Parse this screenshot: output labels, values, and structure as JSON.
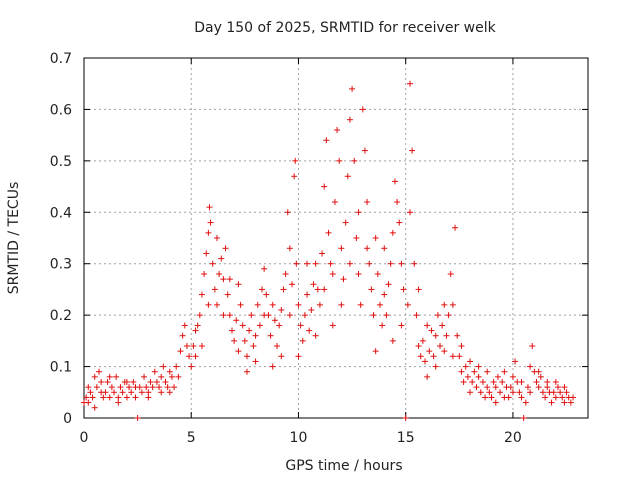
{
  "chart_data": {
    "type": "scatter",
    "title": "Day 150 of 2025, SRMTID for receiver welk",
    "xlabel": "GPS time / hours",
    "ylabel": "SRMTID / TECUs",
    "xlim": [
      0,
      23.5
    ],
    "ylim": [
      0,
      0.7
    ],
    "x_ticks": [
      0,
      5,
      10,
      15,
      20
    ],
    "x_tick_labels": [
      "0",
      "5",
      "10",
      "15",
      "20"
    ],
    "y_ticks": [
      0,
      0.1,
      0.2,
      0.3,
      0.4,
      0.5,
      0.6,
      0.7
    ],
    "y_tick_labels": [
      "0",
      "0.1",
      "0.2",
      "0.3",
      "0.4",
      "0.5",
      "0.6",
      "0.7"
    ],
    "grid": true,
    "marker": "plus",
    "marker_color": "#e01010",
    "series": [
      {
        "name": "SRMTID",
        "points": [
          [
            0.0,
            0.03
          ],
          [
            0.1,
            0.04
          ],
          [
            0.2,
            0.03
          ],
          [
            0.3,
            0.05
          ],
          [
            0.4,
            0.04
          ],
          [
            0.5,
            0.08
          ],
          [
            0.6,
            0.06
          ],
          [
            0.7,
            0.09
          ],
          [
            0.8,
            0.05
          ],
          [
            0.9,
            0.04
          ],
          [
            1.0,
            0.05
          ],
          [
            1.1,
            0.07
          ],
          [
            1.2,
            0.04
          ],
          [
            1.3,
            0.06
          ],
          [
            1.4,
            0.05
          ],
          [
            1.5,
            0.08
          ],
          [
            1.6,
            0.04
          ],
          [
            1.7,
            0.06
          ],
          [
            1.8,
            0.05
          ],
          [
            1.9,
            0.07
          ],
          [
            2.0,
            0.04
          ],
          [
            2.1,
            0.06
          ],
          [
            2.2,
            0.05
          ],
          [
            2.3,
            0.07
          ],
          [
            2.4,
            0.04
          ],
          [
            2.5,
            0.0
          ],
          [
            2.6,
            0.06
          ],
          [
            2.7,
            0.05
          ],
          [
            2.8,
            0.08
          ],
          [
            2.9,
            0.06
          ],
          [
            3.0,
            0.05
          ],
          [
            3.1,
            0.07
          ],
          [
            3.2,
            0.06
          ],
          [
            3.3,
            0.09
          ],
          [
            3.4,
            0.07
          ],
          [
            3.5,
            0.06
          ],
          [
            3.6,
            0.08
          ],
          [
            3.7,
            0.1
          ],
          [
            3.8,
            0.07
          ],
          [
            3.9,
            0.06
          ],
          [
            4.0,
            0.05
          ],
          [
            4.1,
            0.08
          ],
          [
            4.2,
            0.06
          ],
          [
            4.3,
            0.1
          ],
          [
            4.4,
            0.08
          ],
          [
            4.5,
            0.13
          ],
          [
            4.6,
            0.16
          ],
          [
            4.7,
            0.18
          ],
          [
            4.8,
            0.14
          ],
          [
            4.9,
            0.12
          ],
          [
            5.0,
            0.1
          ],
          [
            5.1,
            0.14
          ],
          [
            5.2,
            0.12
          ],
          [
            5.3,
            0.18
          ],
          [
            5.4,
            0.2
          ],
          [
            5.5,
            0.24
          ],
          [
            5.6,
            0.28
          ],
          [
            5.7,
            0.32
          ],
          [
            5.8,
            0.36
          ],
          [
            5.85,
            0.41
          ],
          [
            5.9,
            0.38
          ],
          [
            6.0,
            0.3
          ],
          [
            6.1,
            0.25
          ],
          [
            6.2,
            0.22
          ],
          [
            6.3,
            0.28
          ],
          [
            6.4,
            0.31
          ],
          [
            6.5,
            0.27
          ],
          [
            6.6,
            0.33
          ],
          [
            6.7,
            0.24
          ],
          [
            6.8,
            0.2
          ],
          [
            6.9,
            0.17
          ],
          [
            7.0,
            0.15
          ],
          [
            7.1,
            0.19
          ],
          [
            7.2,
            0.13
          ],
          [
            7.3,
            0.22
          ],
          [
            7.4,
            0.18
          ],
          [
            7.5,
            0.15
          ],
          [
            7.6,
            0.12
          ],
          [
            7.7,
            0.17
          ],
          [
            7.8,
            0.2
          ],
          [
            7.9,
            0.14
          ],
          [
            8.0,
            0.16
          ],
          [
            8.1,
            0.22
          ],
          [
            8.2,
            0.18
          ],
          [
            8.3,
            0.25
          ],
          [
            8.4,
            0.29
          ],
          [
            8.5,
            0.24
          ],
          [
            8.6,
            0.2
          ],
          [
            8.7,
            0.16
          ],
          [
            8.8,
            0.22
          ],
          [
            8.9,
            0.19
          ],
          [
            9.0,
            0.14
          ],
          [
            9.1,
            0.18
          ],
          [
            9.2,
            0.21
          ],
          [
            9.3,
            0.25
          ],
          [
            9.4,
            0.28
          ],
          [
            9.5,
            0.4
          ],
          [
            9.6,
            0.33
          ],
          [
            9.7,
            0.26
          ],
          [
            9.8,
            0.47
          ],
          [
            9.85,
            0.5
          ],
          [
            9.9,
            0.3
          ],
          [
            10.0,
            0.22
          ],
          [
            10.1,
            0.18
          ],
          [
            10.2,
            0.15
          ],
          [
            10.3,
            0.2
          ],
          [
            10.4,
            0.24
          ],
          [
            10.5,
            0.17
          ],
          [
            10.6,
            0.21
          ],
          [
            10.7,
            0.26
          ],
          [
            10.8,
            0.3
          ],
          [
            10.9,
            0.25
          ],
          [
            11.0,
            0.22
          ],
          [
            11.1,
            0.32
          ],
          [
            11.2,
            0.45
          ],
          [
            11.3,
            0.54
          ],
          [
            11.4,
            0.36
          ],
          [
            11.5,
            0.3
          ],
          [
            11.6,
            0.28
          ],
          [
            11.7,
            0.42
          ],
          [
            11.8,
            0.56
          ],
          [
            11.9,
            0.5
          ],
          [
            12.0,
            0.33
          ],
          [
            12.1,
            0.27
          ],
          [
            12.2,
            0.38
          ],
          [
            12.3,
            0.47
          ],
          [
            12.4,
            0.58
          ],
          [
            12.5,
            0.64
          ],
          [
            12.6,
            0.5
          ],
          [
            12.7,
            0.35
          ],
          [
            12.8,
            0.28
          ],
          [
            12.9,
            0.22
          ],
          [
            13.0,
            0.6
          ],
          [
            13.1,
            0.52
          ],
          [
            13.2,
            0.42
          ],
          [
            13.3,
            0.3
          ],
          [
            13.4,
            0.25
          ],
          [
            13.5,
            0.2
          ],
          [
            13.6,
            0.35
          ],
          [
            13.7,
            0.28
          ],
          [
            13.8,
            0.22
          ],
          [
            13.9,
            0.18
          ],
          [
            14.0,
            0.24
          ],
          [
            14.1,
            0.2
          ],
          [
            14.2,
            0.26
          ],
          [
            14.3,
            0.3
          ],
          [
            14.4,
            0.36
          ],
          [
            14.5,
            0.46
          ],
          [
            14.6,
            0.42
          ],
          [
            14.7,
            0.38
          ],
          [
            14.8,
            0.3
          ],
          [
            14.9,
            0.25
          ],
          [
            15.0,
            0.0
          ],
          [
            15.1,
            0.22
          ],
          [
            15.2,
            0.65
          ],
          [
            15.3,
            0.52
          ],
          [
            15.4,
            0.3
          ],
          [
            15.5,
            0.2
          ],
          [
            15.6,
            0.14
          ],
          [
            15.7,
            0.12
          ],
          [
            15.8,
            0.15
          ],
          [
            15.9,
            0.11
          ],
          [
            16.0,
            0.08
          ],
          [
            16.1,
            0.13
          ],
          [
            16.2,
            0.17
          ],
          [
            16.3,
            0.12
          ],
          [
            16.4,
            0.16
          ],
          [
            16.5,
            0.2
          ],
          [
            16.6,
            0.14
          ],
          [
            16.7,
            0.18
          ],
          [
            16.8,
            0.13
          ],
          [
            16.9,
            0.16
          ],
          [
            17.0,
            0.2
          ],
          [
            17.1,
            0.28
          ],
          [
            17.2,
            0.22
          ],
          [
            17.3,
            0.37
          ],
          [
            17.4,
            0.16
          ],
          [
            17.5,
            0.12
          ],
          [
            17.6,
            0.09
          ],
          [
            17.7,
            0.07
          ],
          [
            17.8,
            0.1
          ],
          [
            17.9,
            0.08
          ],
          [
            18.0,
            0.11
          ],
          [
            18.1,
            0.07
          ],
          [
            18.2,
            0.09
          ],
          [
            18.3,
            0.06
          ],
          [
            18.4,
            0.08
          ],
          [
            18.5,
            0.05
          ],
          [
            18.6,
            0.07
          ],
          [
            18.7,
            0.04
          ],
          [
            18.8,
            0.06
          ],
          [
            18.9,
            0.05
          ],
          [
            19.0,
            0.04
          ],
          [
            19.1,
            0.07
          ],
          [
            19.2,
            0.06
          ],
          [
            19.3,
            0.08
          ],
          [
            19.4,
            0.05
          ],
          [
            19.5,
            0.07
          ],
          [
            19.6,
            0.09
          ],
          [
            19.7,
            0.06
          ],
          [
            19.8,
            0.04
          ],
          [
            19.9,
            0.06
          ],
          [
            20.0,
            0.08
          ],
          [
            20.1,
            0.11
          ],
          [
            20.2,
            0.07
          ],
          [
            20.3,
            0.05
          ],
          [
            20.4,
            0.04
          ],
          [
            20.5,
            0.0
          ],
          [
            20.6,
            0.03
          ],
          [
            20.7,
            0.06
          ],
          [
            20.8,
            0.1
          ],
          [
            20.9,
            0.14
          ],
          [
            21.0,
            0.09
          ],
          [
            21.1,
            0.07
          ],
          [
            21.2,
            0.06
          ],
          [
            21.3,
            0.08
          ],
          [
            21.4,
            0.05
          ],
          [
            21.5,
            0.04
          ],
          [
            21.6,
            0.06
          ],
          [
            21.7,
            0.05
          ],
          [
            21.8,
            0.03
          ],
          [
            21.9,
            0.05
          ],
          [
            22.0,
            0.04
          ],
          [
            22.1,
            0.06
          ],
          [
            22.2,
            0.05
          ],
          [
            22.3,
            0.04
          ],
          [
            22.4,
            0.03
          ],
          [
            22.5,
            0.05
          ],
          [
            22.6,
            0.04
          ],
          [
            22.7,
            0.03
          ],
          [
            0.2,
            0.06
          ],
          [
            0.5,
            0.02
          ],
          [
            0.8,
            0.07
          ],
          [
            1.2,
            0.08
          ],
          [
            1.6,
            0.03
          ],
          [
            2.0,
            0.07
          ],
          [
            2.4,
            0.06
          ],
          [
            3.0,
            0.04
          ],
          [
            3.6,
            0.05
          ],
          [
            4.0,
            0.09
          ],
          [
            5.2,
            0.17
          ],
          [
            5.5,
            0.14
          ],
          [
            5.8,
            0.22
          ],
          [
            6.2,
            0.35
          ],
          [
            6.5,
            0.2
          ],
          [
            6.8,
            0.27
          ],
          [
            7.2,
            0.26
          ],
          [
            7.6,
            0.09
          ],
          [
            8.0,
            0.11
          ],
          [
            8.4,
            0.2
          ],
          [
            8.8,
            0.1
          ],
          [
            9.2,
            0.12
          ],
          [
            9.6,
            0.2
          ],
          [
            10.0,
            0.12
          ],
          [
            10.4,
            0.3
          ],
          [
            10.8,
            0.16
          ],
          [
            11.2,
            0.25
          ],
          [
            11.6,
            0.18
          ],
          [
            12.0,
            0.22
          ],
          [
            12.4,
            0.3
          ],
          [
            12.8,
            0.4
          ],
          [
            13.2,
            0.33
          ],
          [
            13.6,
            0.13
          ],
          [
            14.0,
            0.33
          ],
          [
            14.4,
            0.15
          ],
          [
            14.8,
            0.18
          ],
          [
            15.2,
            0.4
          ],
          [
            15.6,
            0.25
          ],
          [
            16.0,
            0.18
          ],
          [
            16.4,
            0.1
          ],
          [
            16.8,
            0.22
          ],
          [
            17.2,
            0.12
          ],
          [
            17.6,
            0.14
          ],
          [
            18.0,
            0.05
          ],
          [
            18.4,
            0.1
          ],
          [
            18.8,
            0.09
          ],
          [
            19.2,
            0.03
          ],
          [
            19.6,
            0.04
          ],
          [
            20.0,
            0.05
          ],
          [
            20.4,
            0.07
          ],
          [
            20.8,
            0.05
          ],
          [
            21.2,
            0.09
          ],
          [
            21.6,
            0.07
          ],
          [
            22.0,
            0.07
          ],
          [
            22.4,
            0.06
          ],
          [
            22.8,
            0.04
          ]
        ]
      }
    ]
  }
}
